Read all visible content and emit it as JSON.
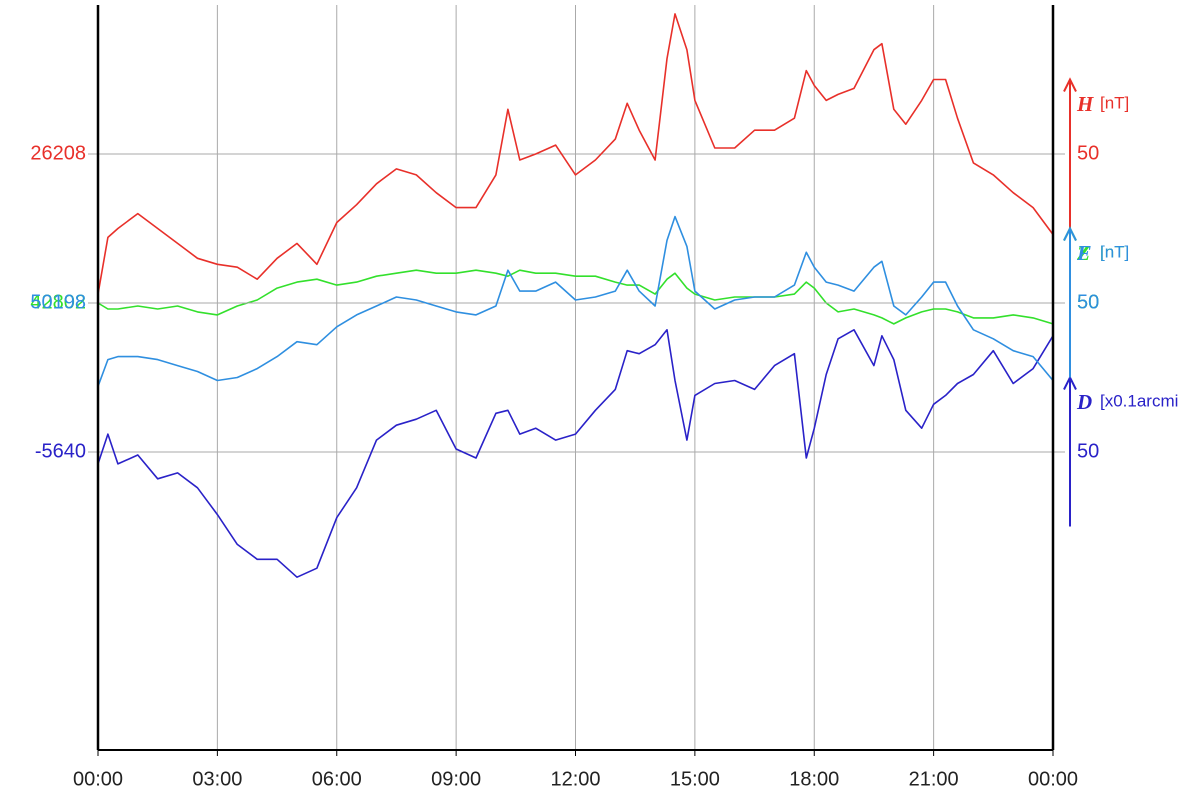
{
  "chart_data": {
    "type": "line",
    "x": [
      0,
      0.25,
      0.5,
      1,
      1.5,
      2,
      2.5,
      3,
      3.5,
      4,
      4.5,
      5,
      5.5,
      6,
      6.5,
      7,
      7.5,
      8,
      8.5,
      9,
      9.5,
      10,
      10.3,
      10.6,
      11,
      11.5,
      12,
      12.5,
      13,
      13.3,
      13.6,
      14,
      14.3,
      14.5,
      14.8,
      15,
      15.5,
      16,
      16.5,
      17,
      17.5,
      17.8,
      18,
      18.3,
      18.6,
      19,
      19.5,
      19.7,
      20,
      20.3,
      20.7,
      21,
      21.3,
      21.6,
      22,
      22.5,
      23,
      23.5,
      24
    ],
    "xlim": [
      0,
      24
    ],
    "xticks": [
      {
        "value": 0,
        "label": "00:00"
      },
      {
        "value": 3,
        "label": "03:00"
      },
      {
        "value": 6,
        "label": "06:00"
      },
      {
        "value": 9,
        "label": "09:00"
      },
      {
        "value": 12,
        "label": "12:00"
      },
      {
        "value": 15,
        "label": "15:00"
      },
      {
        "value": 18,
        "label": "18:00"
      },
      {
        "value": 21,
        "label": "21:00"
      },
      {
        "value": 24,
        "label": "00:00"
      }
    ],
    "grid": true,
    "series": [
      {
        "name": "H",
        "unit": "[nT]",
        "color": "#e8302a",
        "ylim": [
          26008,
          26258
        ],
        "yticks": [
          26208
        ],
        "scale": 50,
        "values": [
          26161,
          26180,
          26183,
          26188,
          26183,
          26178,
          26173,
          26171,
          26170,
          26166,
          26173,
          26178,
          26171,
          26185,
          26191,
          26198,
          26203,
          26201,
          26195,
          26190,
          26190,
          26201,
          26223,
          26206,
          26208,
          26211,
          26201,
          26206,
          26213,
          26225,
          26216,
          26206,
          26240,
          26255,
          26243,
          26226,
          26210,
          26210,
          26216,
          26216,
          26220,
          26236,
          26231,
          26226,
          26228,
          26230,
          26243,
          26245,
          26223,
          26218,
          26226,
          26233,
          26233,
          26220,
          26205,
          26201,
          26195,
          26190,
          26181
        ]
      },
      {
        "name": "Z",
        "unit": "[nT]",
        "color": "#33e02c",
        "ylim": [
          42652,
          42902
        ],
        "yticks": [
          42802
        ],
        "scale": 50,
        "values": [
          42802,
          42800,
          42800,
          42801,
          42800,
          42801,
          42799,
          42798,
          42801,
          42803,
          42807,
          42809,
          42810,
          42808,
          42809,
          42811,
          42812,
          42813,
          42812,
          42812,
          42813,
          42812,
          42811,
          42813,
          42812,
          42812,
          42811,
          42811,
          42809,
          42808,
          42808,
          42805,
          42810,
          42812,
          42807,
          42805,
          42803,
          42804,
          42804,
          42804,
          42805,
          42809,
          42807,
          42802,
          42799,
          42800,
          42798,
          42797,
          42795,
          42797,
          42799,
          42800,
          42800,
          42799,
          42797,
          42797,
          42798,
          42797,
          42795
        ]
      },
      {
        "name": "D",
        "unit": "[x0.1arcmi",
        "color": "#2a22c8",
        "ylim": [
          -5740,
          -5490
        ],
        "yticks": [
          -5640
        ],
        "scale": 50,
        "values": [
          -5644,
          -5634,
          -5644,
          -5641,
          -5649,
          -5647,
          -5652,
          -5661,
          -5671,
          -5676,
          -5676,
          -5682,
          -5679,
          -5662,
          -5652,
          -5636,
          -5631,
          -5629,
          -5626,
          -5639,
          -5642,
          -5627,
          -5626,
          -5634,
          -5632,
          -5636,
          -5634,
          -5626,
          -5619,
          -5606,
          -5607,
          -5604,
          -5599,
          -5616,
          -5636,
          -5621,
          -5617,
          -5616,
          -5619,
          -5611,
          -5607,
          -5642,
          -5632,
          -5614,
          -5602,
          -5599,
          -5611,
          -5601,
          -5609,
          -5626,
          -5632,
          -5624,
          -5621,
          -5617,
          -5614,
          -5606,
          -5617,
          -5612,
          -5601
        ]
      },
      {
        "name": "F",
        "unit": "[nT]",
        "color": "#2f8fe0",
        "ylim": [
          50048,
          50298
        ],
        "yticks": [
          50198
        ],
        "scale": 50,
        "values": [
          50170,
          50179,
          50180,
          50180,
          50179,
          50177,
          50175,
          50172,
          50173,
          50176,
          50180,
          50185,
          50184,
          50190,
          50194,
          50197,
          50200,
          50199,
          50197,
          50195,
          50194,
          50197,
          50209,
          50202,
          50202,
          50205,
          50199,
          50200,
          50202,
          50209,
          50202,
          50197,
          50219,
          50227,
          50217,
          50202,
          50196,
          50199,
          50200,
          50200,
          50204,
          50215,
          50210,
          50205,
          50204,
          50202,
          50210,
          50212,
          50197,
          50194,
          50200,
          50205,
          50205,
          50197,
          50189,
          50186,
          50182,
          50180,
          50172
        ]
      }
    ]
  }
}
